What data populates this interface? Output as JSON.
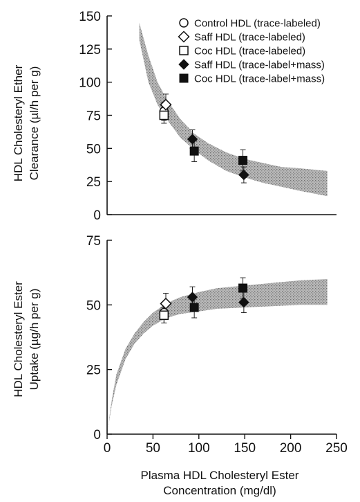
{
  "chart_data": [
    {
      "type": "scatter",
      "panel": "top",
      "title": "",
      "ylabel_lines": [
        "HDL Cholesteryl Ether",
        "Clearance (µl/h per g)"
      ],
      "xlim": [
        0,
        250
      ],
      "ylim": [
        0,
        150
      ],
      "yticks": [
        0,
        25,
        50,
        75,
        100,
        125,
        150
      ],
      "grid": false,
      "legend_position": "top-right",
      "band": {
        "x": [
          35,
          45,
          55,
          65,
          80,
          95,
          110,
          130,
          150,
          170,
          190,
          210,
          240
        ],
        "lower": [
          132,
          100,
          83,
          72,
          58,
          49,
          41,
          33,
          28,
          24,
          21,
          18,
          14
        ],
        "upper": [
          145,
          120,
          100,
          87,
          72,
          61,
          54,
          47,
          42,
          39,
          36,
          35,
          33
        ]
      },
      "series": [
        {
          "name": "Control HDL (trace-labeled)",
          "marker": "circle-open",
          "points": [
            {
              "x": 62,
              "y": 78,
              "err": 7
            }
          ]
        },
        {
          "name": "Saff HDL (trace-labeled)",
          "marker": "diamond-open",
          "points": [
            {
              "x": 64,
              "y": 83,
              "err": 8
            }
          ]
        },
        {
          "name": "Coc HDL (trace-labeled)",
          "marker": "square-open",
          "points": [
            {
              "x": 62,
              "y": 75,
              "err": 6
            }
          ]
        },
        {
          "name": "Saff HDL (trace-label+mass)",
          "marker": "diamond-filled",
          "points": [
            {
              "x": 93,
              "y": 57,
              "err": 7
            },
            {
              "x": 149,
              "y": 30,
              "err": 6
            }
          ]
        },
        {
          "name": "Coc HDL (trace-label+mass)",
          "marker": "square-filled",
          "points": [
            {
              "x": 95,
              "y": 48,
              "err": 8
            },
            {
              "x": 148,
              "y": 41,
              "err": 8
            }
          ]
        }
      ]
    },
    {
      "type": "scatter",
      "panel": "bottom",
      "title": "",
      "ylabel_lines": [
        "HDL Cholesteryl Ester",
        "Uptake (µg/h per g)"
      ],
      "xlabel_lines": [
        "Plasma HDL Cholesteryl Ester",
        "Concentration (mg/dl)"
      ],
      "xlim": [
        0,
        250
      ],
      "ylim": [
        0,
        75
      ],
      "xticks": [
        0,
        50,
        100,
        150,
        200,
        250
      ],
      "yticks": [
        0,
        25,
        50,
        75
      ],
      "grid": false,
      "band": {
        "x": [
          0,
          5,
          10,
          20,
          30,
          40,
          50,
          60,
          70,
          80,
          100,
          120,
          150,
          180,
          210,
          240
        ],
        "lower": [
          0,
          11,
          19,
          29,
          35,
          39,
          42,
          44,
          45.5,
          46.5,
          47.5,
          48.5,
          49,
          49.5,
          50,
          50
        ],
        "upper": [
          0,
          13,
          23,
          33,
          39,
          43.5,
          47,
          49.5,
          51.5,
          53,
          55,
          56.5,
          57.5,
          58.5,
          59.5,
          60
        ]
      },
      "series": [
        {
          "name": "Control HDL (trace-labeled)",
          "marker": "circle-open",
          "points": [
            {
              "x": 62,
              "y": 47,
              "err": 4
            }
          ]
        },
        {
          "name": "Saff HDL (trace-labeled)",
          "marker": "diamond-open",
          "points": [
            {
              "x": 64,
              "y": 50.5,
              "err": 4
            }
          ]
        },
        {
          "name": "Coc HDL (trace-labeled)",
          "marker": "square-open",
          "points": [
            {
              "x": 62,
              "y": 46,
              "err": 3
            }
          ]
        },
        {
          "name": "Saff HDL (trace-label+mass)",
          "marker": "diamond-filled",
          "points": [
            {
              "x": 93,
              "y": 53,
              "err": 4
            },
            {
              "x": 149,
              "y": 51,
              "err": 4
            }
          ]
        },
        {
          "name": "Coc HDL (trace-label+mass)",
          "marker": "square-filled",
          "points": [
            {
              "x": 95,
              "y": 49,
              "err": 4
            },
            {
              "x": 148,
              "y": 56.5,
              "err": 4
            }
          ]
        }
      ]
    }
  ]
}
